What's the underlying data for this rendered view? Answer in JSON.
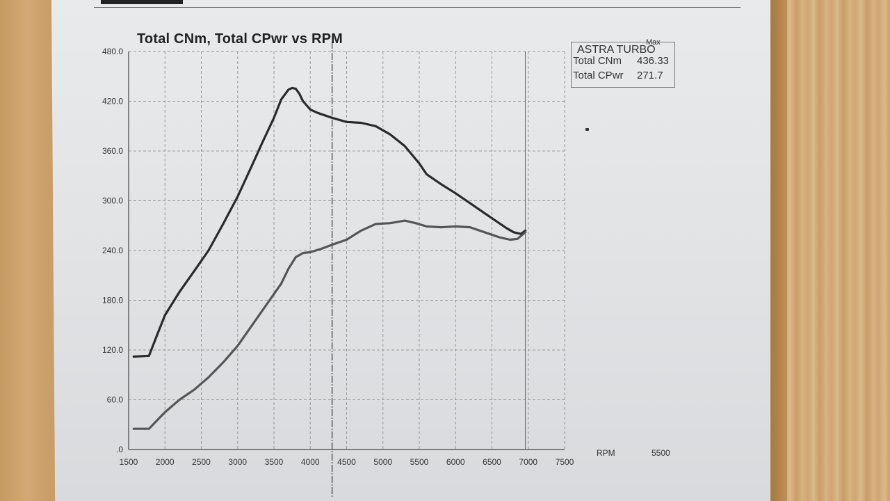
{
  "chart_data": {
    "type": "line",
    "title": "Total CNm, Total CPwr vs RPM",
    "xlabel": "RPM",
    "xlim": [
      1500,
      7500
    ],
    "ylim": [
      0,
      480
    ],
    "x_ticks": [
      "1500",
      "2000",
      "2500",
      "3000",
      "3500",
      "4000",
      "4500",
      "5000",
      "5500",
      "6000",
      "6500",
      "7000",
      "7500"
    ],
    "y_ticks": [
      ".0",
      "60.0",
      "120.0",
      "180.0",
      "240.0",
      "300.0",
      "360.0",
      "420.0",
      "480.0"
    ],
    "extra_label": "5500",
    "grid": true,
    "legend": {
      "title": "ASTRA TURBO",
      "max_label": "Max",
      "entries": [
        {
          "name": "Total CNm",
          "max": "436.33"
        },
        {
          "name": "Total CPwr",
          "max": "271.7"
        }
      ],
      "placement": "top-right"
    },
    "series": [
      {
        "name": "Total CNm",
        "color": "#2a2a2a",
        "points": [
          [
            1570,
            112
          ],
          [
            1780,
            113
          ],
          [
            1900,
            140
          ],
          [
            2000,
            162
          ],
          [
            2200,
            190
          ],
          [
            2400,
            215
          ],
          [
            2600,
            240
          ],
          [
            2800,
            272
          ],
          [
            3000,
            305
          ],
          [
            3100,
            324
          ],
          [
            3200,
            343
          ],
          [
            3350,
            372
          ],
          [
            3500,
            400
          ],
          [
            3600,
            422
          ],
          [
            3700,
            434
          ],
          [
            3750,
            436
          ],
          [
            3800,
            435
          ],
          [
            3850,
            429
          ],
          [
            3900,
            420
          ],
          [
            4000,
            410
          ],
          [
            4100,
            406
          ],
          [
            4300,
            400
          ],
          [
            4500,
            395
          ],
          [
            4700,
            394
          ],
          [
            4900,
            390
          ],
          [
            5100,
            380
          ],
          [
            5300,
            366
          ],
          [
            5500,
            345
          ],
          [
            5600,
            332
          ],
          [
            5800,
            320
          ],
          [
            6000,
            309
          ],
          [
            6200,
            297
          ],
          [
            6400,
            285
          ],
          [
            6600,
            273
          ],
          [
            6700,
            267
          ],
          [
            6800,
            262
          ],
          [
            6900,
            260
          ],
          [
            6960,
            264
          ]
        ]
      },
      {
        "name": "Total CPwr",
        "color": "#555555",
        "points": [
          [
            1570,
            25
          ],
          [
            1780,
            25
          ],
          [
            1900,
            36
          ],
          [
            2000,
            45
          ],
          [
            2200,
            60
          ],
          [
            2400,
            72
          ],
          [
            2600,
            87
          ],
          [
            2800,
            105
          ],
          [
            3000,
            125
          ],
          [
            3200,
            150
          ],
          [
            3400,
            175
          ],
          [
            3600,
            200
          ],
          [
            3700,
            218
          ],
          [
            3800,
            232
          ],
          [
            3900,
            237
          ],
          [
            4000,
            238
          ],
          [
            4150,
            242
          ],
          [
            4300,
            247
          ],
          [
            4500,
            253
          ],
          [
            4700,
            264
          ],
          [
            4900,
            272
          ],
          [
            5100,
            273
          ],
          [
            5300,
            276
          ],
          [
            5450,
            273
          ],
          [
            5600,
            269
          ],
          [
            5800,
            268
          ],
          [
            6000,
            269
          ],
          [
            6200,
            268
          ],
          [
            6400,
            262
          ],
          [
            6600,
            256
          ],
          [
            6750,
            253
          ],
          [
            6850,
            254
          ],
          [
            6960,
            262
          ]
        ]
      }
    ]
  }
}
